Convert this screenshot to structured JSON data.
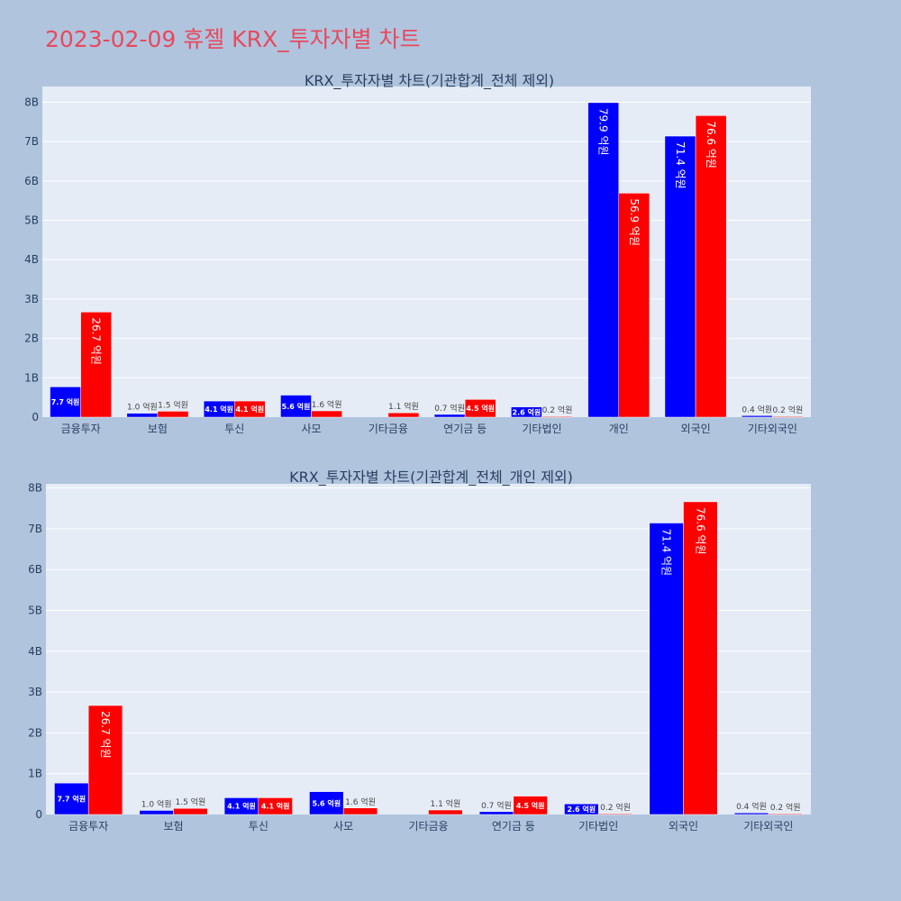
{
  "page_title": "2023-02-09 휴젤 KRX_투자자별 차트",
  "colors": {
    "buy": "#0000ff",
    "sell": "#ff0000",
    "plot_bg": "#e5ecf6",
    "page_bg": "#b0c4de",
    "title": "#e8495c"
  },
  "chart_data": [
    {
      "type": "bar",
      "title": "KRX_투자자별 차트(기관합계_전체 제외)",
      "categories": [
        "금융투자",
        "보험",
        "투신",
        "사모",
        "기타금융",
        "연기금 등",
        "기타법인",
        "개인",
        "외국인",
        "기타외국인"
      ],
      "series": [
        {
          "values": [
            7.7,
            1.0,
            4.1,
            5.6,
            0,
            0.7,
            2.6,
            79.9,
            71.4,
            0.4
          ],
          "labels": [
            "7.7 억원",
            "1.0 억원",
            "4.1 억원",
            "5.6 억원",
            "",
            "0.7 억원",
            "2.6 억원",
            "79.9 억원",
            "71.4 억원",
            "0.4 억원"
          ]
        },
        {
          "values": [
            26.7,
            1.5,
            4.1,
            1.6,
            1.1,
            4.5,
            0.2,
            56.9,
            76.6,
            0.2
          ],
          "labels": [
            "26.7 억원",
            "1.5 억원",
            "4.1 억원",
            "1.6 억원",
            "1.1 억원",
            "4.5 억원",
            "0.2 억원",
            "56.9 억원",
            "76.6 억원",
            "0.2 억원"
          ]
        }
      ],
      "ylim": [
        0,
        84
      ],
      "yticks": [
        0,
        10,
        20,
        30,
        40,
        50,
        60,
        70,
        80
      ],
      "ytick_labels": [
        "0",
        "1B",
        "2B",
        "3B",
        "4B",
        "5B",
        "6B",
        "7B",
        "8B"
      ],
      "grid": true
    },
    {
      "type": "bar",
      "title": "KRX_투자자별 차트(기관합계_전체_개인 제외)",
      "categories": [
        "금융투자",
        "보험",
        "투신",
        "사모",
        "기타금융",
        "연기금 등",
        "기타법인",
        "외국인",
        "기타외국인"
      ],
      "series": [
        {
          "values": [
            7.7,
            1.0,
            4.1,
            5.6,
            0,
            0.7,
            2.6,
            71.4,
            0.4
          ],
          "labels": [
            "7.7 억원",
            "1.0 억원",
            "4.1 억원",
            "5.6 억원",
            "",
            "0.7 억원",
            "2.6 억원",
            "71.4 억원",
            "0.4 억원"
          ]
        },
        {
          "values": [
            26.7,
            1.5,
            4.1,
            1.6,
            1.1,
            4.5,
            0.2,
            76.6,
            0.2
          ],
          "labels": [
            "26.7 억원",
            "1.5 억원",
            "4.1 억원",
            "1.6 억원",
            "1.1 억원",
            "4.5 억원",
            "0.2 억원",
            "76.6 억원",
            "0.2 억원"
          ]
        }
      ],
      "ylim": [
        0,
        81
      ],
      "yticks": [
        0,
        10,
        20,
        30,
        40,
        50,
        60,
        70,
        80
      ],
      "ytick_labels": [
        "0",
        "1B",
        "2B",
        "3B",
        "4B",
        "5B",
        "6B",
        "7B",
        "8B"
      ],
      "grid": true
    }
  ]
}
